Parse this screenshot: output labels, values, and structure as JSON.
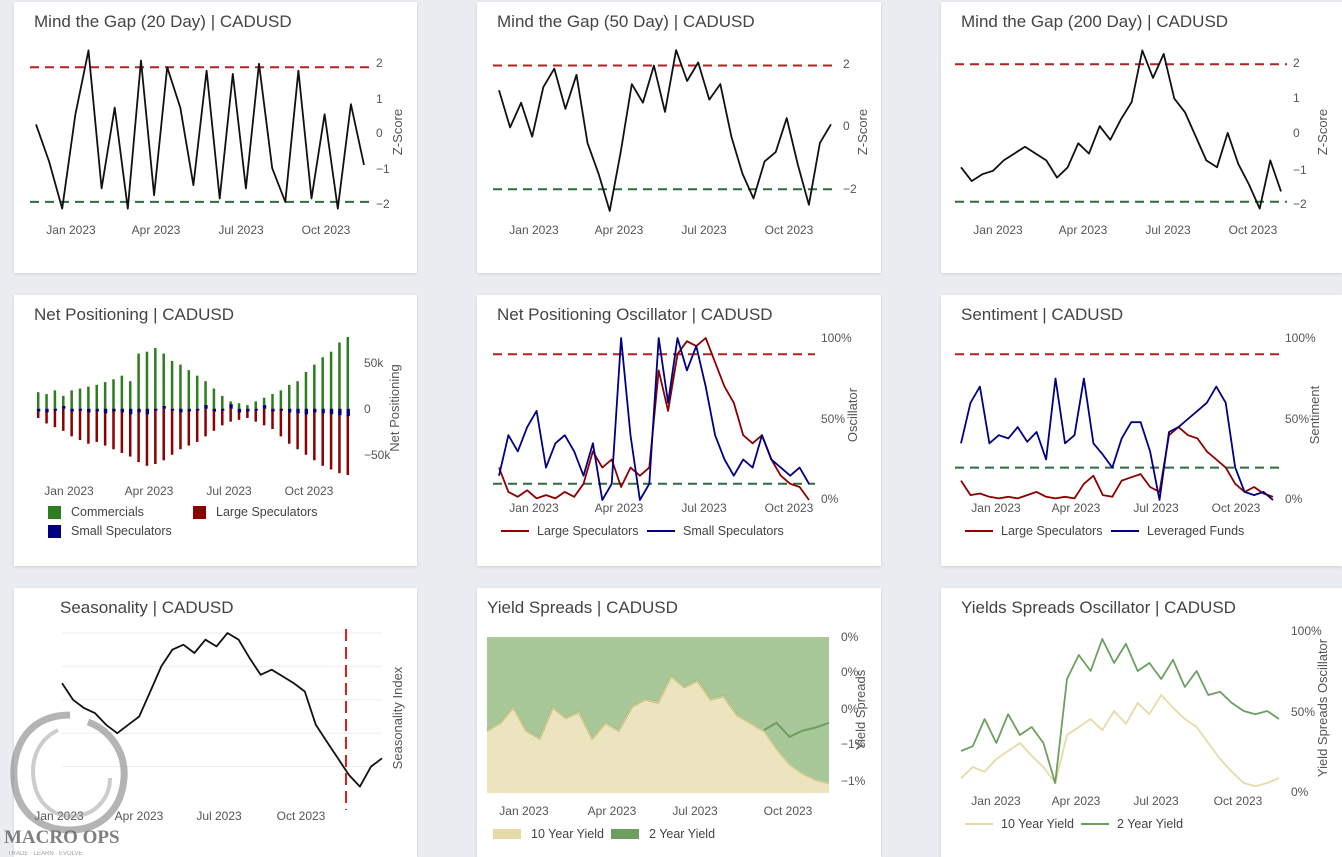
{
  "colors": {
    "series": "#111111",
    "upper_band": "#b22222",
    "lower_band": "#2e6b3e",
    "commercials": "#2e7d1e",
    "large_specs": "#8b0000",
    "small_specs": "#000080",
    "leveraged": "#000080",
    "ten_year": "#e6dba8",
    "two_year": "#6e9e60"
  },
  "logo": {
    "name": "MACRO OPS",
    "tagline": "TRADE · LEARN · EVOLVE"
  },
  "cards": [
    {
      "title": "Mind the Gap (20 Day) | CADUSD",
      "chart_data": {
        "type": "line",
        "ylabel": "Z-Score",
        "y_ticks": [
          "2",
          "1",
          "0",
          "−1",
          "−2"
        ],
        "x_ticks": [
          "Jan 2023",
          "Apr 2023",
          "Jul 2023",
          "Oct 2023"
        ],
        "ylim": [
          -2.3,
          2.6
        ],
        "bands": [
          2,
          -2
        ],
        "series": [
          {
            "values": [
              0.3,
              -0.8,
              -2.2,
              0.6,
              2.5,
              -1.6,
              0.8,
              -2.2,
              2.2,
              -1.8,
              2.0,
              0.8,
              -1.5,
              1.9,
              -1.9,
              1.8,
              -1.6,
              2.1,
              -1.0,
              -2.0,
              1.9,
              -1.9,
              0.6,
              -2.2,
              0.9,
              -0.9
            ]
          }
        ]
      }
    },
    {
      "title": "Mind the Gap (50 Day) | CADUSD",
      "chart_data": {
        "type": "line",
        "ylabel": "Z-Score",
        "y_ticks": [
          "2",
          "0",
          "−2"
        ],
        "x_ticks": [
          "Jan 2023",
          "Apr 2023",
          "Jul 2023",
          "Oct 2023"
        ],
        "ylim": [
          -2.8,
          2.6
        ],
        "bands": [
          2,
          -2
        ],
        "series": [
          {
            "values": [
              1.2,
              0.0,
              0.8,
              -0.3,
              1.3,
              1.9,
              0.6,
              1.7,
              -0.5,
              -1.5,
              -2.7,
              -0.8,
              1.4,
              0.8,
              2.0,
              0.5,
              2.5,
              1.5,
              2.1,
              0.9,
              1.4,
              -0.3,
              -1.5,
              -2.3,
              -1.1,
              -0.8,
              0.3,
              -1.2,
              -2.5,
              -0.5,
              0.1
            ]
          }
        ]
      }
    },
    {
      "title": "Mind the Gap (200 Day) | CADUSD",
      "chart_data": {
        "type": "line",
        "ylabel": "Z-Score",
        "y_ticks": [
          "2",
          "1",
          "0",
          "−1",
          "−2"
        ],
        "x_ticks": [
          "Jan 2023",
          "Apr 2023",
          "Jul 2023",
          "Oct 2023"
        ],
        "ylim": [
          -2.3,
          2.5
        ],
        "bands": [
          2,
          -2
        ],
        "series": [
          {
            "values": [
              -1.0,
              -1.4,
              -1.2,
              -1.1,
              -0.8,
              -0.6,
              -0.4,
              -0.6,
              -0.8,
              -1.3,
              -1.0,
              -0.3,
              -0.6,
              0.2,
              -0.2,
              0.4,
              0.9,
              2.4,
              1.6,
              2.3,
              1.0,
              0.6,
              -0.1,
              -0.8,
              -1.0,
              0.0,
              -0.9,
              -1.5,
              -2.2,
              -0.8,
              -1.7
            ]
          }
        ]
      }
    },
    {
      "title": "Net Positioning | CADUSD",
      "chart_data": {
        "type": "bar",
        "ylabel": "Net Positioning",
        "y_ticks": [
          "50k",
          "0",
          "−50k"
        ],
        "y_tick_values": [
          50000,
          0,
          -50000
        ],
        "x_ticks": [
          "Jan 2023",
          "Apr 2023",
          "Jul 2023",
          "Oct 2023"
        ],
        "ylim": [
          -72000,
          78000
        ],
        "series": [
          {
            "name": "Commercials",
            "values": [
              18000,
              16000,
              20000,
              14000,
              20000,
              22000,
              24000,
              26000,
              29000,
              32000,
              36000,
              30000,
              60000,
              62000,
              66000,
              60000,
              52000,
              48000,
              42000,
              36000,
              30000,
              22000,
              14000,
              8000,
              6000,
              4000,
              8000,
              12000,
              16000,
              20000,
              26000,
              30000,
              40000,
              48000,
              56000,
              62000,
              72000,
              78000
            ]
          },
          {
            "name": "Large Speculators",
            "values": [
              -10000,
              -16000,
              -20000,
              -24000,
              -30000,
              -34000,
              -38000,
              -36000,
              -40000,
              -44000,
              -48000,
              -52000,
              -58000,
              -62000,
              -60000,
              -56000,
              -50000,
              -44000,
              -40000,
              -36000,
              -30000,
              -24000,
              -18000,
              -14000,
              -12000,
              -10000,
              -14000,
              -18000,
              -22000,
              -30000,
              -38000,
              -44000,
              -50000,
              -56000,
              -62000,
              -66000,
              -70000,
              -72000
            ]
          },
          {
            "name": "Small Speculators",
            "values": [
              -3000,
              -4000,
              -2000,
              3000,
              -3000,
              -2000,
              -4000,
              -3000,
              -5000,
              -3000,
              -4000,
              -6000,
              -4000,
              -6000,
              -2000,
              3000,
              -2000,
              -4000,
              -3000,
              -2000,
              4000,
              -3000,
              -2000,
              5000,
              -4000,
              -3000,
              -2000,
              4000,
              -3000,
              -2000,
              -4000,
              -5000,
              -6000,
              -4000,
              -5000,
              -6000,
              -7000,
              -8000
            ]
          }
        ]
      },
      "legend": [
        "Commercials",
        "Large Speculators",
        "Small Speculators"
      ]
    },
    {
      "title": "Net Positioning Oscillator | CADUSD",
      "chart_data": {
        "type": "line",
        "ylabel": "Oscillator",
        "y_ticks": [
          "100%",
          "50%",
          "0%"
        ],
        "y_tick_values": [
          100,
          50,
          0
        ],
        "x_ticks": [
          "Jan 2023",
          "Apr 2023",
          "Jul 2023",
          "Oct 2023"
        ],
        "ylim": [
          0,
          100
        ],
        "bands": [
          90,
          10
        ],
        "series": [
          {
            "name": "Large Speculators",
            "values": [
              20,
              5,
              2,
              6,
              1,
              3,
              1,
              5,
              2,
              10,
              30,
              20,
              25,
              8,
              20,
              15,
              20,
              80,
              55,
              90,
              98,
              95,
              100,
              85,
              70,
              60,
              40,
              35,
              40,
              25,
              15,
              10,
              8,
              0
            ]
          },
          {
            "name": "Small Speculators",
            "values": [
              15,
              40,
              30,
              45,
              55,
              20,
              35,
              40,
              30,
              15,
              35,
              0,
              10,
              100,
              40,
              0,
              10,
              100,
              60,
              100,
              80,
              95,
              70,
              40,
              25,
              15,
              25,
              20,
              40,
              25,
              20,
              15,
              20,
              10
            ]
          }
        ]
      },
      "legend": [
        "Large Speculators",
        "Small Speculators"
      ]
    },
    {
      "title": "Sentiment | CADUSD",
      "chart_data": {
        "type": "line",
        "ylabel": "Sentiment",
        "y_ticks": [
          "100%",
          "50%",
          "0%"
        ],
        "y_tick_values": [
          100,
          50,
          0
        ],
        "x_ticks": [
          "Jan 2023",
          "Apr 2023",
          "Jul 2023",
          "Oct 2023"
        ],
        "ylim": [
          0,
          100
        ],
        "bands": [
          90,
          20
        ],
        "series": [
          {
            "name": "Large Speculators",
            "values": [
              12,
              3,
              4,
              2,
              1,
              2,
              1,
              3,
              5,
              2,
              1,
              2,
              1,
              10,
              15,
              3,
              2,
              12,
              14,
              16,
              8,
              5,
              40,
              45,
              40,
              38,
              30,
              25,
              20,
              10,
              5,
              8,
              4,
              2
            ]
          },
          {
            "name": "Leveraged Funds",
            "values": [
              35,
              60,
              70,
              35,
              40,
              38,
              45,
              36,
              42,
              25,
              75,
              35,
              40,
              75,
              35,
              28,
              20,
              38,
              48,
              48,
              30,
              0,
              42,
              45,
              50,
              55,
              60,
              70,
              60,
              20,
              5,
              3,
              5,
              0
            ]
          }
        ]
      },
      "legend": [
        "Large Speculators",
        "Leveraged Funds"
      ]
    },
    {
      "title": "Seasonality | CADUSD",
      "chart_data": {
        "type": "line",
        "ylabel": "Seasonality Index",
        "x_ticks": [
          "Jan 2023",
          "Apr 2023",
          "Jul 2023",
          "Oct 2023"
        ],
        "ylim": [
          0,
          100
        ],
        "series": [
          {
            "values": [
              70,
              60,
              55,
              52,
              45,
              40,
              45,
              50,
              65,
              80,
              90,
              93,
              88,
              96,
              92,
              100,
              96,
              85,
              75,
              78,
              74,
              70,
              65,
              45,
              35,
              25,
              15,
              8,
              20,
              25
            ]
          }
        ]
      }
    },
    {
      "title": "Yield Spreads | CADUSD",
      "chart_data": {
        "type": "area",
        "ylabel": "Yield Spreads",
        "y_ticks": [
          "0%",
          "0%",
          "0%",
          "−1%",
          "−1%"
        ],
        "x_ticks": [
          "Jan 2023",
          "Apr 2023",
          "Jul 2023",
          "Oct 2023"
        ],
        "ylim": [
          0,
          100
        ],
        "series": [
          {
            "name": "10 Year Yield",
            "values": [
              40,
              45,
              55,
              40,
              35,
              55,
              48,
              52,
              35,
              45,
              40,
              55,
              60,
              58,
              75,
              68,
              72,
              60,
              62,
              50,
              45,
              40,
              28,
              18,
              12,
              8,
              6
            ]
          },
          {
            "name": "2 Year Yield",
            "values": [
              15,
              25,
              20,
              30,
              22,
              28,
              18,
              35,
              26,
              40,
              30,
              36,
              42,
              38,
              40,
              28,
              35,
              30,
              38,
              34,
              42,
              38,
              45,
              36,
              40,
              42,
              45
            ]
          }
        ]
      },
      "legend": [
        "10 Year Yield",
        "2 Year Yield"
      ]
    },
    {
      "title": "Yields Spreads Oscillator | CADUSD",
      "chart_data": {
        "type": "line",
        "ylabel": "Yield Spreads Oscillator",
        "y_ticks": [
          "100%",
          "50%",
          "0%"
        ],
        "y_tick_values": [
          100,
          50,
          0
        ],
        "x_ticks": [
          "Jan 2023",
          "Apr 2023",
          "Jul 2023",
          "Oct 2023"
        ],
        "ylim": [
          0,
          100
        ],
        "series": [
          {
            "name": "10 Year Yield",
            "values": [
              8,
              15,
              12,
              20,
              25,
              30,
              22,
              15,
              5,
              35,
              40,
              45,
              38,
              50,
              42,
              55,
              48,
              60,
              52,
              45,
              40,
              30,
              20,
              12,
              5,
              3,
              5,
              8
            ]
          },
          {
            "name": "2 Year Yield",
            "values": [
              25,
              28,
              45,
              30,
              48,
              35,
              40,
              30,
              5,
              70,
              85,
              75,
              95,
              80,
              92,
              75,
              80,
              70,
              82,
              65,
              75,
              60,
              62,
              55,
              50,
              48,
              50,
              45
            ]
          }
        ]
      },
      "legend": [
        "10 Year Yield",
        "2 Year Yield"
      ]
    }
  ]
}
